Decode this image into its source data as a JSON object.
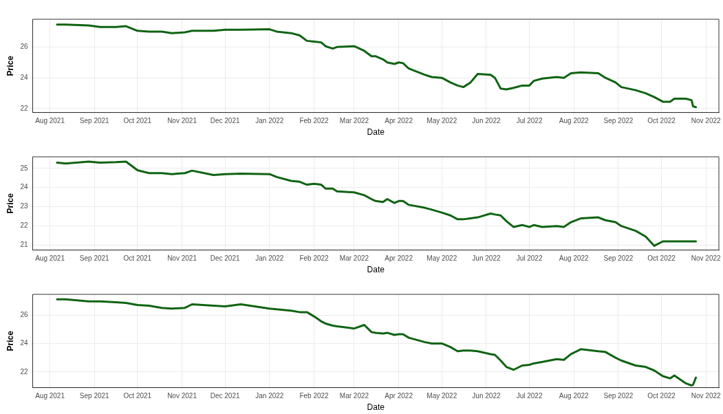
{
  "chart_data": [
    {
      "type": "line",
      "xlabel": "Date",
      "ylabel": "Price",
      "grid": true,
      "legend": false,
      "marker": "none",
      "line_style": "solid",
      "xlim": [
        "2021-07-20",
        "2022-11-10"
      ],
      "ylim": [
        21.75,
        27.8
      ],
      "yticks": [
        22,
        24,
        26
      ],
      "xticks": [
        {
          "value": "2021-08-01",
          "label": "Aug 2021"
        },
        {
          "value": "2021-09-01",
          "label": "Sep 2021"
        },
        {
          "value": "2021-10-01",
          "label": "Oct 2021"
        },
        {
          "value": "2021-11-01",
          "label": "Nov 2021"
        },
        {
          "value": "2021-12-01",
          "label": "Dec 2021"
        },
        {
          "value": "2022-01-01",
          "label": "Jan 2022"
        },
        {
          "value": "2022-02-01",
          "label": "Feb 2022"
        },
        {
          "value": "2022-03-01",
          "label": "Mar 2022"
        },
        {
          "value": "2022-04-01",
          "label": "Apr 2022"
        },
        {
          "value": "2022-05-01",
          "label": "May 2022"
        },
        {
          "value": "2022-06-01",
          "label": "Jun 2022"
        },
        {
          "value": "2022-07-01",
          "label": "Jul 2022"
        },
        {
          "value": "2022-08-01",
          "label": "Aug 2022"
        },
        {
          "value": "2022-09-01",
          "label": "Sep 2022"
        },
        {
          "value": "2022-10-01",
          "label": "Oct 2022"
        },
        {
          "value": "2022-11-01",
          "label": "Nov 2022"
        }
      ],
      "x": [
        "2021-08-06",
        "2021-08-12",
        "2021-08-28",
        "2021-09-05",
        "2021-09-16",
        "2021-09-23",
        "2021-10-01",
        "2021-10-09",
        "2021-10-18",
        "2021-10-25",
        "2021-11-03",
        "2021-11-08",
        "2021-11-23",
        "2021-12-01",
        "2021-12-12",
        "2022-01-01",
        "2022-01-06",
        "2022-01-16",
        "2022-01-22",
        "2022-01-27",
        "2022-02-01",
        "2022-02-06",
        "2022-02-09",
        "2022-02-14",
        "2022-02-17",
        "2022-03-01",
        "2022-03-08",
        "2022-03-13",
        "2022-03-16",
        "2022-03-21",
        "2022-03-24",
        "2022-03-29",
        "2022-04-01",
        "2022-04-04",
        "2022-04-08",
        "2022-04-19",
        "2022-04-24",
        "2022-05-01",
        "2022-05-07",
        "2022-05-12",
        "2022-05-16",
        "2022-05-21",
        "2022-05-26",
        "2022-06-04",
        "2022-06-07",
        "2022-06-11",
        "2022-06-15",
        "2022-06-20",
        "2022-06-26",
        "2022-07-01",
        "2022-07-04",
        "2022-07-10",
        "2022-07-20",
        "2022-07-25",
        "2022-07-30",
        "2022-08-06",
        "2022-08-18",
        "2022-08-23",
        "2022-08-30",
        "2022-09-03",
        "2022-09-13",
        "2022-09-20",
        "2022-09-26",
        "2022-10-02",
        "2022-10-07",
        "2022-10-10",
        "2022-10-18",
        "2022-10-22",
        "2022-10-23",
        "2022-10-25"
      ],
      "series": [
        {
          "color": "#0f6312",
          "values": [
            27.45,
            27.45,
            27.4,
            27.3,
            27.3,
            27.35,
            27.05,
            27.0,
            27.0,
            26.9,
            26.95,
            27.05,
            27.05,
            27.12,
            27.12,
            27.15,
            27.0,
            26.9,
            26.75,
            26.4,
            26.35,
            26.3,
            26.05,
            25.9,
            26.0,
            26.05,
            25.75,
            25.4,
            25.4,
            25.2,
            25.0,
            24.9,
            25.0,
            24.95,
            24.6,
            24.2,
            24.05,
            24.0,
            23.7,
            23.5,
            23.4,
            23.7,
            24.25,
            24.2,
            24.0,
            23.3,
            23.25,
            23.35,
            23.5,
            23.5,
            23.8,
            23.95,
            24.05,
            24.0,
            24.3,
            24.35,
            24.3,
            24.0,
            23.7,
            23.4,
            23.2,
            23.0,
            22.75,
            22.45,
            22.45,
            22.65,
            22.65,
            22.55,
            22.15,
            22.1
          ]
        }
      ]
    },
    {
      "type": "line",
      "xlabel": "Date",
      "ylabel": "Price",
      "grid": true,
      "legend": false,
      "marker": "none",
      "line_style": "solid",
      "xlim": [
        "2021-07-20",
        "2022-11-10"
      ],
      "ylim": [
        20.75,
        25.6
      ],
      "yticks": [
        21,
        22,
        23,
        24,
        25
      ],
      "xticks": [
        {
          "value": "2021-08-01",
          "label": "Aug 2021"
        },
        {
          "value": "2021-09-01",
          "label": "Sep 2021"
        },
        {
          "value": "2021-10-01",
          "label": "Oct 2021"
        },
        {
          "value": "2021-11-01",
          "label": "Nov 2021"
        },
        {
          "value": "2021-12-01",
          "label": "Dec 2021"
        },
        {
          "value": "2022-01-01",
          "label": "Jan 2022"
        },
        {
          "value": "2022-02-01",
          "label": "Feb 2022"
        },
        {
          "value": "2022-03-01",
          "label": "Mar 2022"
        },
        {
          "value": "2022-04-01",
          "label": "Apr 2022"
        },
        {
          "value": "2022-05-01",
          "label": "May 2022"
        },
        {
          "value": "2022-06-01",
          "label": "Jun 2022"
        },
        {
          "value": "2022-07-01",
          "label": "Jul 2022"
        },
        {
          "value": "2022-08-01",
          "label": "Aug 2022"
        },
        {
          "value": "2022-09-01",
          "label": "Sep 2022"
        },
        {
          "value": "2022-10-01",
          "label": "Oct 2022"
        },
        {
          "value": "2022-11-01",
          "label": "Nov 2022"
        }
      ],
      "x": [
        "2021-08-06",
        "2021-08-12",
        "2021-08-28",
        "2021-09-05",
        "2021-09-16",
        "2021-09-23",
        "2021-10-01",
        "2021-10-09",
        "2021-10-18",
        "2021-10-25",
        "2021-11-03",
        "2021-11-08",
        "2021-11-23",
        "2021-12-01",
        "2021-12-12",
        "2022-01-01",
        "2022-01-06",
        "2022-01-16",
        "2022-01-22",
        "2022-01-27",
        "2022-02-01",
        "2022-02-06",
        "2022-02-09",
        "2022-02-14",
        "2022-02-17",
        "2022-03-01",
        "2022-03-08",
        "2022-03-13",
        "2022-03-16",
        "2022-03-21",
        "2022-03-24",
        "2022-03-29",
        "2022-04-01",
        "2022-04-04",
        "2022-04-08",
        "2022-04-19",
        "2022-04-24",
        "2022-05-01",
        "2022-05-07",
        "2022-05-12",
        "2022-05-16",
        "2022-05-21",
        "2022-05-26",
        "2022-06-04",
        "2022-06-07",
        "2022-06-11",
        "2022-06-15",
        "2022-06-20",
        "2022-06-26",
        "2022-07-01",
        "2022-07-04",
        "2022-07-10",
        "2022-07-20",
        "2022-07-25",
        "2022-07-30",
        "2022-08-06",
        "2022-08-18",
        "2022-08-23",
        "2022-08-30",
        "2022-09-03",
        "2022-09-13",
        "2022-09-20",
        "2022-09-26",
        "2022-10-02",
        "2022-10-07",
        "2022-10-10",
        "2022-10-18",
        "2022-10-22",
        "2022-10-23",
        "2022-10-25"
      ],
      "series": [
        {
          "color": "#0f6312",
          "values": [
            25.3,
            25.25,
            25.35,
            25.3,
            25.32,
            25.35,
            24.9,
            24.75,
            24.75,
            24.7,
            24.75,
            24.88,
            24.65,
            24.7,
            24.72,
            24.7,
            24.55,
            24.35,
            24.3,
            24.15,
            24.2,
            24.15,
            23.95,
            23.95,
            23.8,
            23.75,
            23.6,
            23.4,
            23.3,
            23.25,
            23.4,
            23.2,
            23.3,
            23.3,
            23.1,
            22.95,
            22.85,
            22.7,
            22.55,
            22.35,
            22.35,
            22.4,
            22.45,
            22.65,
            22.6,
            22.55,
            22.25,
            21.95,
            22.05,
            21.95,
            22.05,
            21.95,
            22.0,
            21.95,
            22.2,
            22.4,
            22.45,
            22.3,
            22.2,
            22.0,
            21.75,
            21.45,
            20.97,
            21.2,
            21.2,
            21.2,
            21.2,
            21.2,
            21.2,
            21.2
          ]
        }
      ]
    },
    {
      "type": "line",
      "xlabel": "Date",
      "ylabel": "Price",
      "grid": true,
      "legend": false,
      "marker": "none",
      "line_style": "solid",
      "xlim": [
        "2021-07-20",
        "2022-11-10"
      ],
      "ylim": [
        20.9,
        27.45
      ],
      "yticks": [
        22,
        24,
        26
      ],
      "xticks": [
        {
          "value": "2021-08-01",
          "label": "Aug 2021"
        },
        {
          "value": "2021-09-01",
          "label": "Sep 2021"
        },
        {
          "value": "2021-10-01",
          "label": "Oct 2021"
        },
        {
          "value": "2021-11-01",
          "label": "Nov 2021"
        },
        {
          "value": "2021-12-01",
          "label": "Dec 2021"
        },
        {
          "value": "2022-01-01",
          "label": "Jan 2022"
        },
        {
          "value": "2022-02-01",
          "label": "Feb 2022"
        },
        {
          "value": "2022-03-01",
          "label": "Mar 2022"
        },
        {
          "value": "2022-04-01",
          "label": "Apr 2022"
        },
        {
          "value": "2022-05-01",
          "label": "May 2022"
        },
        {
          "value": "2022-06-01",
          "label": "Jun 2022"
        },
        {
          "value": "2022-07-01",
          "label": "Jul 2022"
        },
        {
          "value": "2022-08-01",
          "label": "Aug 2022"
        },
        {
          "value": "2022-09-01",
          "label": "Sep 2022"
        },
        {
          "value": "2022-10-01",
          "label": "Oct 2022"
        },
        {
          "value": "2022-11-01",
          "label": "Nov 2022"
        }
      ],
      "x": [
        "2021-08-06",
        "2021-08-12",
        "2021-08-28",
        "2021-09-05",
        "2021-09-16",
        "2021-09-23",
        "2021-10-01",
        "2021-10-09",
        "2021-10-18",
        "2021-10-25",
        "2021-11-03",
        "2021-11-08",
        "2021-11-23",
        "2021-12-01",
        "2021-12-12",
        "2022-01-01",
        "2022-01-06",
        "2022-01-16",
        "2022-01-22",
        "2022-01-27",
        "2022-02-01",
        "2022-02-06",
        "2022-02-09",
        "2022-02-14",
        "2022-02-17",
        "2022-03-01",
        "2022-03-08",
        "2022-03-13",
        "2022-03-16",
        "2022-03-21",
        "2022-03-24",
        "2022-03-29",
        "2022-04-01",
        "2022-04-04",
        "2022-04-08",
        "2022-04-19",
        "2022-04-24",
        "2022-05-01",
        "2022-05-07",
        "2022-05-12",
        "2022-05-16",
        "2022-05-21",
        "2022-05-26",
        "2022-06-04",
        "2022-06-07",
        "2022-06-11",
        "2022-06-15",
        "2022-06-20",
        "2022-06-26",
        "2022-07-01",
        "2022-07-04",
        "2022-07-10",
        "2022-07-20",
        "2022-07-25",
        "2022-07-30",
        "2022-08-06",
        "2022-08-18",
        "2022-08-23",
        "2022-08-30",
        "2022-09-03",
        "2022-09-13",
        "2022-09-20",
        "2022-09-26",
        "2022-10-02",
        "2022-10-07",
        "2022-10-10",
        "2022-10-18",
        "2022-10-22",
        "2022-10-23",
        "2022-10-25"
      ],
      "series": [
        {
          "color": "#0f6312",
          "values": [
            27.1,
            27.1,
            26.95,
            26.95,
            26.9,
            26.85,
            26.7,
            26.65,
            26.5,
            26.45,
            26.5,
            26.75,
            26.65,
            26.6,
            26.75,
            26.45,
            26.4,
            26.3,
            26.2,
            26.2,
            25.9,
            25.55,
            25.4,
            25.25,
            25.2,
            25.05,
            25.3,
            24.8,
            24.75,
            24.7,
            24.75,
            24.6,
            24.65,
            24.65,
            24.4,
            24.1,
            24.0,
            24.0,
            23.75,
            23.45,
            23.5,
            23.5,
            23.45,
            23.25,
            23.2,
            22.8,
            22.35,
            22.15,
            22.45,
            22.5,
            22.6,
            22.7,
            22.9,
            22.85,
            23.25,
            23.6,
            23.45,
            23.4,
            23.0,
            22.8,
            22.45,
            22.35,
            22.1,
            21.7,
            21.55,
            21.75,
            21.2,
            21.05,
            21.1,
            21.6
          ]
        }
      ]
    }
  ]
}
